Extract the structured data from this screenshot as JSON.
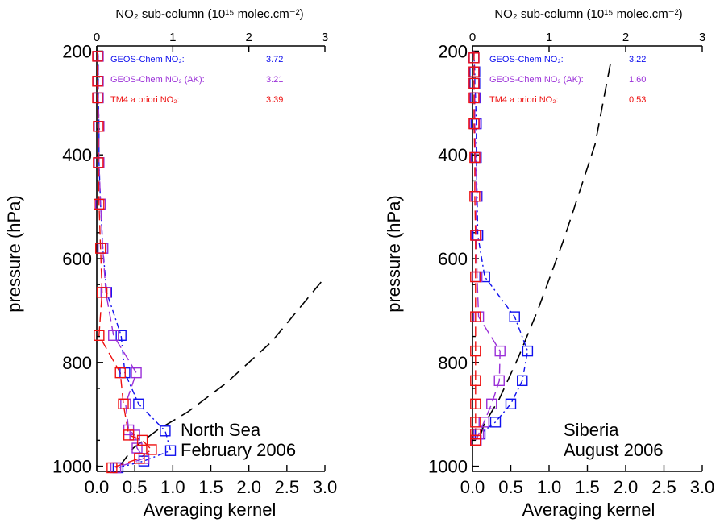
{
  "chart_data": [
    {
      "type": "line",
      "region": "North Sea",
      "period": "February 2006",
      "ylabel": "pressure (hPa)",
      "xlabel_bottom": "Averaging kernel",
      "xlabel_top": "NO₂ sub-column (10¹⁵ molec.cm⁻²)",
      "xlim_bottom": [
        0,
        3
      ],
      "xlim_top": [
        0,
        3
      ],
      "ylim": [
        1010,
        190
      ],
      "yticks": [
        200,
        400,
        600,
        800,
        1000
      ],
      "xticks_bottom": [
        "0.0",
        "0.5",
        "1.0",
        "1.5",
        "2.0",
        "2.5",
        "3.0"
      ],
      "xticks_top": [
        "0",
        "1",
        "2",
        "3"
      ],
      "legend": [
        {
          "label": "GEOS-Chem NO₂:",
          "value": "3.72",
          "color": "#1010ee"
        },
        {
          "label": "GEOS-Chem NO₂ (AK):",
          "value": "3.21",
          "color": "#9a2fd8"
        },
        {
          "label": "TM4 a priori NO₂:",
          "value": "3.39",
          "color": "#ee1010"
        }
      ],
      "series": [
        {
          "style": "averaging-kernel",
          "color": "#000000",
          "x": [
            2.95,
            2.3,
            1.7,
            1.2,
            0.8,
            0.48,
            0.3
          ],
          "y": [
            645,
            760,
            840,
            895,
            930,
            965,
            1000
          ]
        },
        {
          "style": "geos-chem",
          "color": "#1010ee",
          "x": [
            0.01,
            0.02,
            0.02,
            0.02,
            0.03,
            0.03,
            0.05,
            0.08,
            0.13,
            0.32,
            0.37,
            0.55,
            0.9,
            0.97,
            0.62,
            0.28
          ],
          "y": [
            200,
            210,
            258,
            290,
            345,
            415,
            495,
            580,
            665,
            748,
            820,
            880,
            932,
            970,
            990,
            1003
          ]
        },
        {
          "style": "geos-chem-ak",
          "color": "#9a2fd8",
          "x": [
            0.01,
            0.02,
            0.02,
            0.02,
            0.03,
            0.03,
            0.05,
            0.08,
            0.12,
            0.22,
            0.52,
            0.38,
            0.42,
            0.5,
            0.53,
            0.62,
            0.25
          ],
          "y": [
            200,
            210,
            258,
            290,
            345,
            415,
            495,
            580,
            665,
            748,
            820,
            880,
            930,
            940,
            965,
            985,
            1003
          ]
        },
        {
          "style": "tm4-a-priori",
          "color": "#ee1010",
          "x": [
            0.01,
            0.01,
            0.01,
            0.01,
            0.02,
            0.02,
            0.03,
            0.05,
            0.07,
            0.03,
            0.31,
            0.35,
            0.42,
            0.6,
            0.72,
            0.56,
            0.2
          ],
          "y": [
            200,
            210,
            258,
            290,
            345,
            415,
            495,
            580,
            665,
            748,
            820,
            880,
            940,
            950,
            968,
            985,
            1003
          ]
        }
      ],
      "marker_series": [
        1,
        2,
        3
      ],
      "marker_skip_first": true
    },
    {
      "type": "line",
      "region": "Siberia",
      "period": "August 2006",
      "ylabel": "pressure (hPa)",
      "xlabel_bottom": "Averaging kernel",
      "xlabel_top": "NO₂ sub-column (10¹⁵ molec.cm⁻²)",
      "xlim_bottom": [
        0,
        3
      ],
      "xlim_top": [
        0,
        3
      ],
      "ylim": [
        1010,
        190
      ],
      "yticks": [
        200,
        400,
        600,
        800,
        1000
      ],
      "xticks_bottom": [
        "0.0",
        "0.5",
        "1.0",
        "1.5",
        "2.0",
        "2.5",
        "3.0"
      ],
      "xticks_top": [
        "0",
        "1",
        "2",
        "3"
      ],
      "legend": [
        {
          "label": "GEOS-Chem NO₂:",
          "value": "3.22",
          "color": "#1010ee"
        },
        {
          "label": "GEOS-Chem NO₂ (AK):",
          "value": "1.60",
          "color": "#9a2fd8"
        },
        {
          "label": "TM4 a priori NO₂:",
          "value": "0.53",
          "color": "#ee1010"
        }
      ],
      "series": [
        {
          "style": "averaging-kernel",
          "color": "#000000",
          "x": [
            1.8,
            1.6,
            1.2,
            0.85,
            0.6,
            0.35,
            0.15,
            0.08
          ],
          "y": [
            225,
            380,
            560,
            700,
            790,
            870,
            920,
            950
          ]
        },
        {
          "style": "geos-chem",
          "color": "#1010ee",
          "x": [
            0.02,
            0.02,
            0.03,
            0.03,
            0.04,
            0.05,
            0.05,
            0.06,
            0.07,
            0.16,
            0.55,
            0.72,
            0.65,
            0.5,
            0.3,
            0.1
          ],
          "y": [
            200,
            213,
            240,
            262,
            290,
            340,
            405,
            480,
            555,
            635,
            712,
            778,
            835,
            880,
            915,
            938
          ]
        },
        {
          "style": "geos-chem-ak",
          "color": "#9a2fd8",
          "x": [
            0.01,
            0.02,
            0.02,
            0.02,
            0.03,
            0.03,
            0.04,
            0.05,
            0.05,
            0.06,
            0.08,
            0.36,
            0.35,
            0.25,
            0.15,
            0.08,
            0.05
          ],
          "y": [
            200,
            213,
            240,
            262,
            290,
            340,
            405,
            480,
            555,
            635,
            712,
            778,
            835,
            880,
            915,
            938,
            950
          ]
        },
        {
          "style": "tm4-a-priori",
          "color": "#ee1010",
          "x": [
            0.02,
            0.02,
            0.02,
            0.02,
            0.02,
            0.02,
            0.03,
            0.03,
            0.04,
            0.04,
            0.04,
            0.04,
            0.04,
            0.04,
            0.04,
            0.04,
            0.04,
            0.04
          ],
          "y": [
            200,
            213,
            240,
            262,
            290,
            340,
            405,
            480,
            555,
            635,
            712,
            778,
            835,
            880,
            915,
            938,
            950,
            950
          ]
        }
      ],
      "marker_series": [
        1,
        2,
        3
      ],
      "marker_skip_first": true
    }
  ]
}
